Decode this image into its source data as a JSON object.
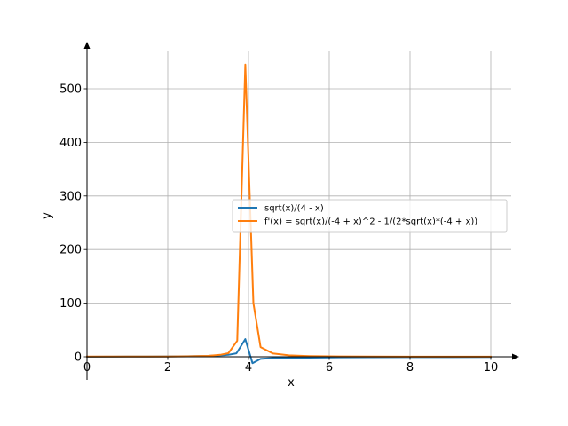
{
  "chart_data": {
    "type": "line",
    "title": "",
    "xlabel": "x",
    "ylabel": "y",
    "xlim": [
      0,
      10.5
    ],
    "ylim": [
      -40,
      570
    ],
    "x_ticks": [
      0,
      2,
      4,
      6,
      8,
      10
    ],
    "y_ticks": [
      0,
      100,
      200,
      300,
      400,
      500
    ],
    "grid": true,
    "legend_position": "center-right",
    "series": [
      {
        "name": "sqrt(x)/(4 - x)",
        "color": "#1f77b4",
        "x": [
          0,
          0.5,
          1,
          1.5,
          2,
          2.5,
          3,
          3.3,
          3.5,
          3.7,
          3.92,
          4.1,
          4.3,
          4.6,
          5,
          5.5,
          6,
          7,
          8,
          9,
          10
        ],
        "y": [
          0,
          0.2,
          0.33,
          0.49,
          0.71,
          1.05,
          1.73,
          2.6,
          3.7,
          6.4,
          33,
          -12,
          -4,
          -2.5,
          -2.2,
          -1.6,
          -1.2,
          -0.88,
          -0.71,
          -0.6,
          -0.53
        ]
      },
      {
        "name": "f'(x) = sqrt(x)/(-4 + x)^2 - 1/(2*sqrt(x)*(-4 + x))",
        "color": "#ff7f0e",
        "x": [
          0,
          0.5,
          1,
          1.5,
          2,
          2.5,
          3,
          3.3,
          3.5,
          3.72,
          3.92,
          4.12,
          4.3,
          4.6,
          5,
          5.5,
          6,
          7,
          8,
          9,
          10
        ],
        "y": [
          0.3,
          0.4,
          0.44,
          0.45,
          0.53,
          0.84,
          1.6,
          3.6,
          6.6,
          30,
          545,
          100,
          18,
          6.3,
          2.7,
          1.3,
          0.8,
          0.38,
          0.21,
          0.14,
          0.1
        ]
      }
    ]
  }
}
